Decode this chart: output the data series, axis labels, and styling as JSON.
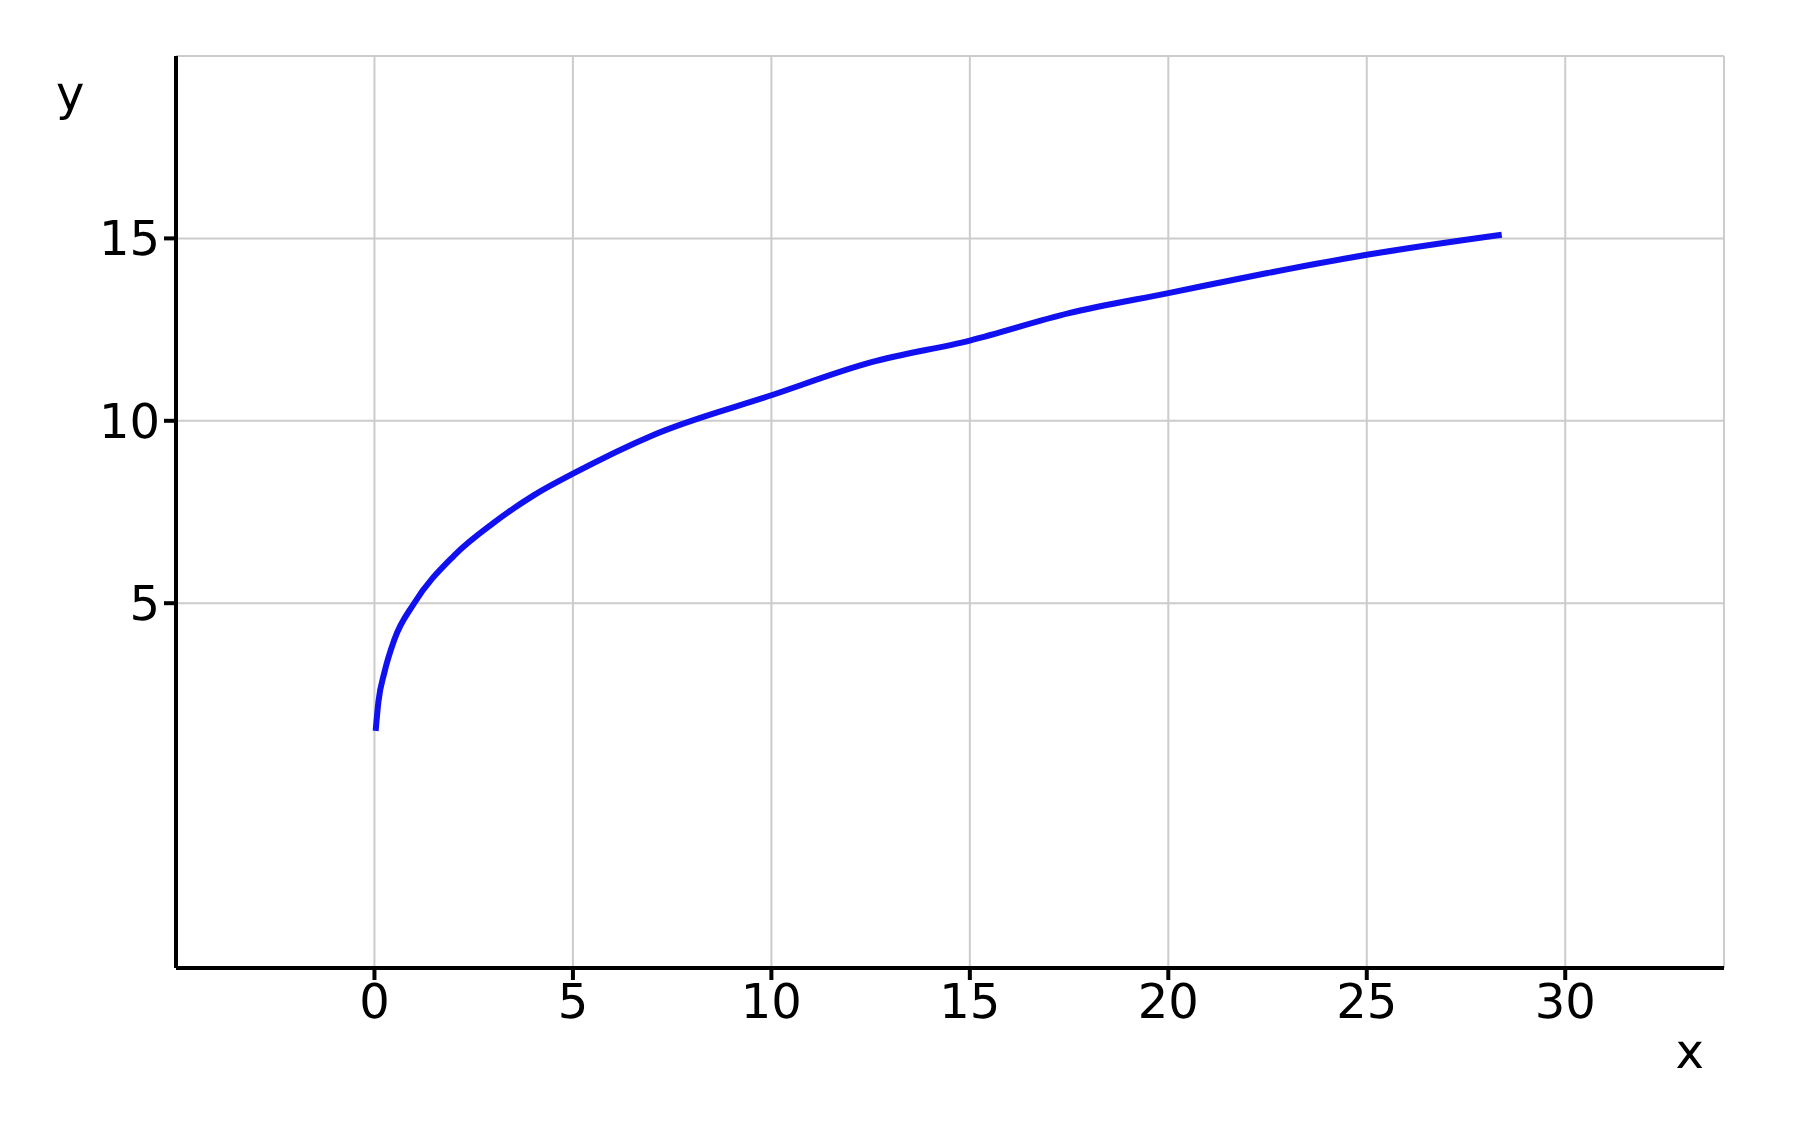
{
  "chart_data": {
    "type": "line",
    "xlabel": "x",
    "ylabel": "y",
    "x": [
      0.03,
      0.1,
      0.25,
      0.5,
      1,
      2,
      3,
      4,
      5,
      7,
      10,
      12.5,
      15,
      17.5,
      20,
      22.5,
      25,
      28.4
    ],
    "series": [
      {
        "color": "#1010f0",
        "values": [
          1.5,
          2.3,
          3.1,
          4,
          5,
          6.3,
          7.2,
          7.95,
          8.55,
          9.6,
          10.7,
          11.6,
          12.2,
          12.95,
          13.5,
          14.05,
          14.55,
          15.1
        ]
      }
    ],
    "xlim": [
      -5,
      34
    ],
    "ylim": [
      -5,
      20
    ],
    "xticks": [
      0,
      5,
      10,
      15,
      20,
      25,
      30
    ],
    "yticks": [
      5,
      10,
      15
    ],
    "grid": true,
    "marker": "none",
    "line_style": "solid"
  }
}
